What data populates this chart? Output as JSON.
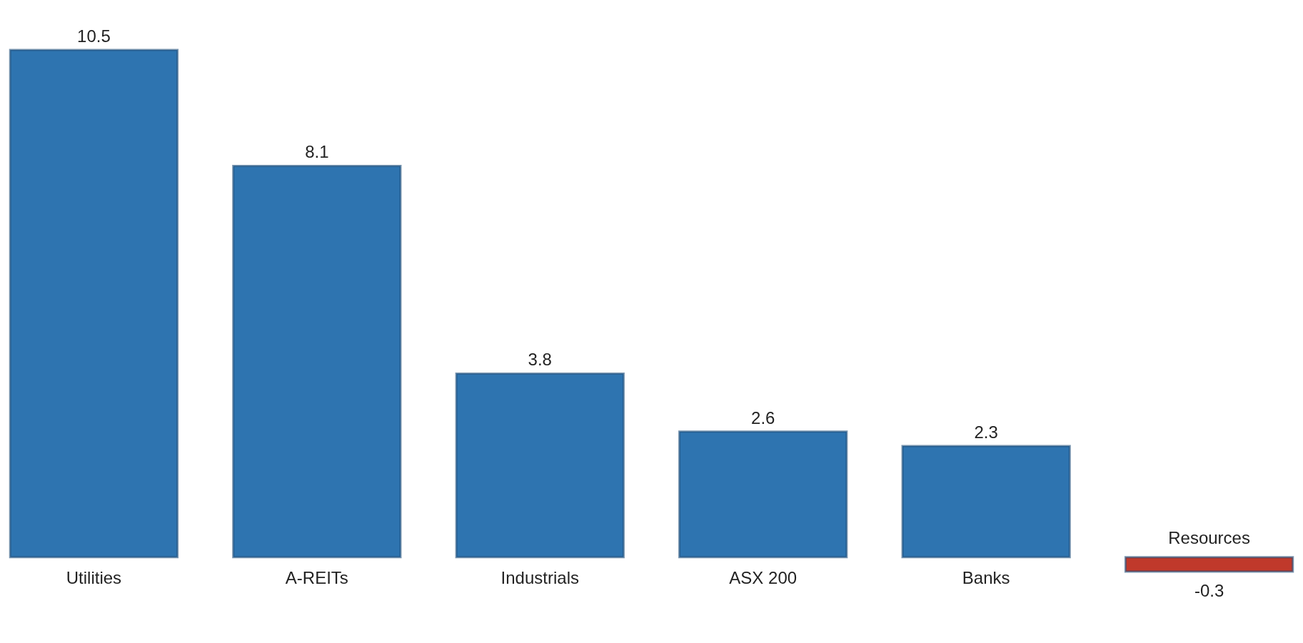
{
  "chart_data": {
    "type": "bar",
    "categories": [
      "Utilities",
      "A-REITs",
      "Industrials",
      "ASX 200",
      "Banks",
      "Resources"
    ],
    "values": [
      10.5,
      8.1,
      3.8,
      2.6,
      2.3,
      -0.3
    ],
    "colors": [
      "#2e74b0",
      "#2e74b0",
      "#2e74b0",
      "#2e74b0",
      "#2e74b0",
      "#c0392b"
    ],
    "data_labels": true
  }
}
